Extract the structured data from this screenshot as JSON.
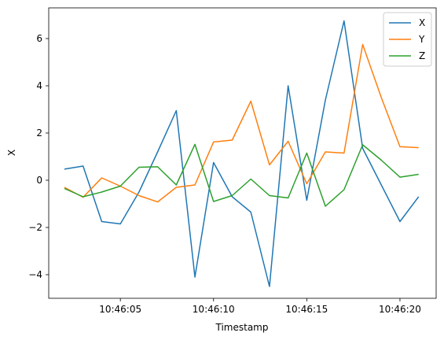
{
  "chart_data": {
    "type": "line",
    "xlabel": "Timestamp",
    "ylabel": "X",
    "x": [
      "10:46:02",
      "10:46:03",
      "10:46:04",
      "10:46:05",
      "10:46:06",
      "10:46:07",
      "10:46:08",
      "10:46:09",
      "10:46:10",
      "10:46:11",
      "10:46:12",
      "10:46:13",
      "10:46:14",
      "10:46:15",
      "10:46:16",
      "10:46:17",
      "10:46:18",
      "10:46:19",
      "10:46:20",
      "10:46:21"
    ],
    "x_ticks": [
      "10:46:05",
      "10:46:10",
      "10:46:15",
      "10:46:20"
    ],
    "y_ticks": [
      "6",
      "4",
      "2",
      "0",
      "−2",
      "−4"
    ],
    "ylim": [
      -5.0,
      7.3
    ],
    "grid": false,
    "legend_position": "top-right",
    "series": [
      {
        "name": "X",
        "color": "#1f77b4",
        "values": [
          0.47,
          0.6,
          -1.75,
          -1.85,
          -0.5,
          1.2,
          2.95,
          -4.1,
          0.75,
          -0.7,
          -1.35,
          -4.5,
          4.0,
          -0.85,
          3.4,
          6.75,
          1.35,
          -0.2,
          -1.75,
          -0.7
        ]
      },
      {
        "name": "Y",
        "color": "#ff7f0e",
        "values": [
          -0.3,
          -0.72,
          0.1,
          -0.25,
          -0.65,
          -0.92,
          -0.3,
          -0.2,
          1.62,
          1.7,
          3.35,
          0.65,
          1.65,
          -0.15,
          1.2,
          1.15,
          5.75,
          3.5,
          1.42,
          1.38
        ]
      },
      {
        "name": "Z",
        "color": "#2ca02c",
        "values": [
          -0.35,
          -0.7,
          -0.5,
          -0.25,
          0.55,
          0.57,
          -0.2,
          1.52,
          -0.9,
          -0.65,
          0.05,
          -0.65,
          -0.75,
          1.15,
          -1.1,
          -0.4,
          1.5,
          0.85,
          0.13,
          0.25
        ]
      }
    ]
  }
}
